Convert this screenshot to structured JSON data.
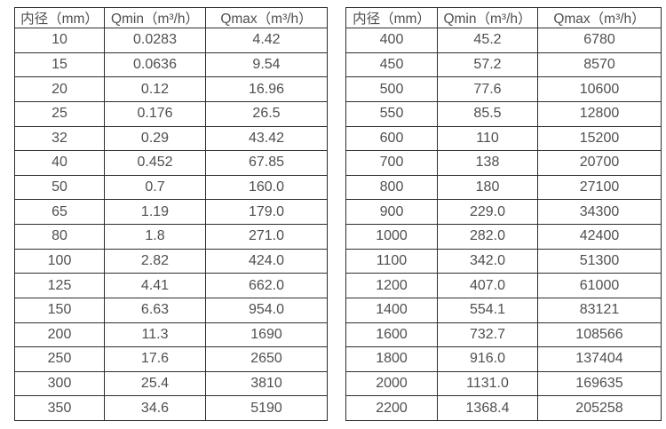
{
  "colors": {
    "background": "#ffffff",
    "border": "#2e2e2e",
    "text": "#4f4f4f"
  },
  "tables": [
    {
      "name": "flow-spec-table-small-diameters",
      "headers": [
        "内径（mm）",
        "Qmin（m³/h）",
        "Qmax（m³/h）"
      ],
      "rows": [
        [
          "10",
          "0.0283",
          "4.42"
        ],
        [
          "15",
          "0.0636",
          "9.54"
        ],
        [
          "20",
          "0.12",
          "16.96"
        ],
        [
          "25",
          "0.176",
          "26.5"
        ],
        [
          "32",
          "0.29",
          "43.42"
        ],
        [
          "40",
          "0.452",
          "67.85"
        ],
        [
          "50",
          "0.7",
          "160.0"
        ],
        [
          "65",
          "1.19",
          "179.0"
        ],
        [
          "80",
          "1.8",
          "271.0"
        ],
        [
          "100",
          "2.82",
          "424.0"
        ],
        [
          "125",
          "4.41",
          "662.0"
        ],
        [
          "150",
          "6.63",
          "954.0"
        ],
        [
          "200",
          "11.3",
          "1690"
        ],
        [
          "250",
          "17.6",
          "2650"
        ],
        [
          "300",
          "25.4",
          "3810"
        ],
        [
          "350",
          "34.6",
          "5190"
        ]
      ]
    },
    {
      "name": "flow-spec-table-large-diameters",
      "headers": [
        "内径（mm）",
        "Qmin（m³/h）",
        "Qmax（m³/h）"
      ],
      "rows": [
        [
          "400",
          "45.2",
          "6780"
        ],
        [
          "450",
          "57.2",
          "8570"
        ],
        [
          "500",
          "77.6",
          "10600"
        ],
        [
          "550",
          "85.5",
          "12800"
        ],
        [
          "600",
          "110",
          "15200"
        ],
        [
          "700",
          "138",
          "20700"
        ],
        [
          "800",
          "180",
          "27100"
        ],
        [
          "900",
          "229.0",
          "34300"
        ],
        [
          "1000",
          "282.0",
          "42400"
        ],
        [
          "1100",
          "342.0",
          "51300"
        ],
        [
          "1200",
          "407.0",
          "61000"
        ],
        [
          "1400",
          "554.1",
          "83121"
        ],
        [
          "1600",
          "732.7",
          "108566"
        ],
        [
          "1800",
          "916.0",
          "137404"
        ],
        [
          "2000",
          "1131.0",
          "169635"
        ],
        [
          "2200",
          "1368.4",
          "205258"
        ]
      ]
    }
  ]
}
